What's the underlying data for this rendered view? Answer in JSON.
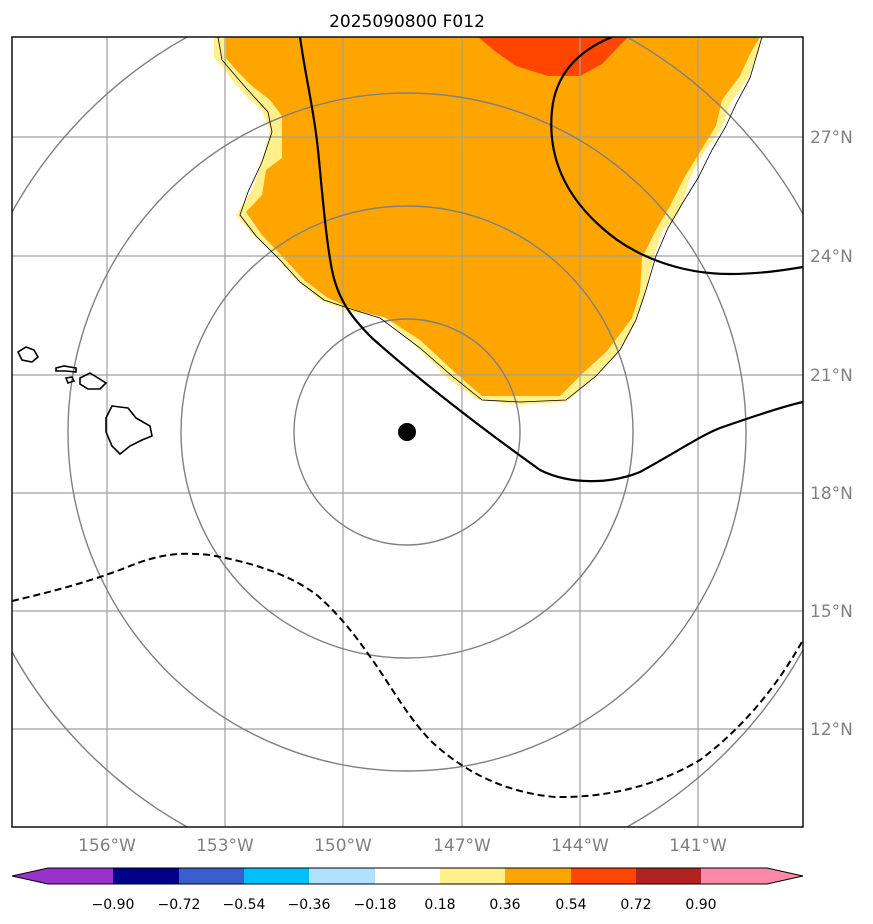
{
  "title": "2025090800 F012",
  "lon_ticks": [
    "156°W",
    "153°W",
    "150°W",
    "147°W",
    "144°W",
    "141°W"
  ],
  "lat_ticks": [
    "27°N",
    "24°N",
    "21°N",
    "18°N",
    "15°N",
    "12°N"
  ],
  "map": {
    "lon_range": [
      -158.4,
      -138.3
    ],
    "lat_range": [
      9.5,
      29.5
    ],
    "center_marker": {
      "lon": -148.4,
      "lat": 19.5
    },
    "range_rings": 4,
    "colors": {
      "fill_light": "#fff08c",
      "fill_mid": "#ffa500",
      "fill_high": "#ff4500",
      "grid": "#a0a0a0",
      "rings": "#808080"
    }
  },
  "colorbar": {
    "labels": [
      "−0.90",
      "−0.72",
      "−0.54",
      "−0.36",
      "−0.18",
      "0.18",
      "0.36",
      "0.54",
      "0.72",
      "0.90"
    ],
    "colors": [
      "#9932cc",
      "#00008b",
      "#3a5fcd",
      "#00bfff",
      "#b0e2ff",
      "#ffffff",
      "#fff08c",
      "#ffa500",
      "#ff4500",
      "#b22222",
      "#ff88aa"
    ]
  }
}
